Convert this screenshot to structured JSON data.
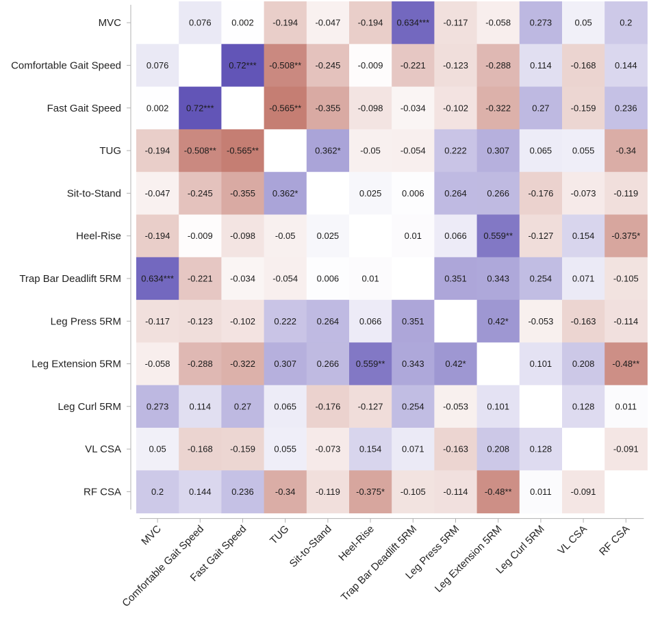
{
  "chart_data": {
    "type": "heatmap",
    "title": "",
    "xlabel": "",
    "ylabel": "",
    "value_range": [
      -0.75,
      0.75
    ],
    "colors": {
      "negative": "#b4584a",
      "positive": "#5c4fb4",
      "neutral": "#ffffff"
    },
    "categories": [
      "MVC",
      "Comfortable Gait Speed",
      "Fast Gait Speed",
      "TUG",
      "Sit-to-Stand",
      "Heel-Rise",
      "Trap Bar Deadlift 5RM",
      "Leg Press 5RM",
      "Leg Extension 5RM",
      "Leg Curl 5RM",
      "VL CSA",
      "RF CSA"
    ],
    "values": [
      [
        null,
        0.076,
        0.002,
        -0.194,
        -0.047,
        -0.194,
        0.634,
        -0.117,
        -0.058,
        0.273,
        0.05,
        0.2
      ],
      [
        0.076,
        null,
        0.72,
        -0.508,
        -0.245,
        -0.009,
        -0.221,
        -0.123,
        -0.288,
        0.114,
        -0.168,
        0.144
      ],
      [
        0.002,
        0.72,
        null,
        -0.565,
        -0.355,
        -0.098,
        -0.034,
        -0.102,
        -0.322,
        0.27,
        -0.159,
        0.236
      ],
      [
        -0.194,
        -0.508,
        -0.565,
        null,
        0.362,
        -0.05,
        -0.054,
        0.222,
        0.307,
        0.065,
        0.055,
        -0.34
      ],
      [
        -0.047,
        -0.245,
        -0.355,
        0.362,
        null,
        0.025,
        0.006,
        0.264,
        0.266,
        -0.176,
        -0.073,
        -0.119
      ],
      [
        -0.194,
        -0.009,
        -0.098,
        -0.05,
        0.025,
        null,
        0.01,
        0.066,
        0.559,
        -0.127,
        0.154,
        -0.375
      ],
      [
        0.634,
        -0.221,
        -0.034,
        -0.054,
        0.006,
        0.01,
        null,
        0.351,
        0.343,
        0.254,
        0.071,
        -0.105
      ],
      [
        -0.117,
        -0.123,
        -0.102,
        0.222,
        0.264,
        0.066,
        0.351,
        null,
        0.42,
        -0.053,
        -0.163,
        -0.114
      ],
      [
        -0.058,
        -0.288,
        -0.322,
        0.307,
        0.266,
        0.559,
        0.343,
        0.42,
        null,
        0.101,
        0.208,
        -0.48
      ],
      [
        0.273,
        0.114,
        0.27,
        0.065,
        -0.176,
        -0.127,
        0.254,
        -0.053,
        0.101,
        null,
        0.128,
        0.011
      ],
      [
        0.05,
        -0.168,
        -0.159,
        0.055,
        -0.073,
        0.154,
        0.071,
        -0.163,
        0.208,
        0.128,
        null,
        -0.091
      ],
      [
        0.2,
        0.144,
        0.236,
        -0.34,
        -0.119,
        -0.375,
        -0.105,
        -0.114,
        -0.48,
        0.011,
        -0.091,
        null
      ]
    ],
    "labels": [
      [
        "",
        "0.076",
        "0.002",
        "-0.194",
        "-0.047",
        "-0.194",
        "0.634***",
        "-0.117",
        "-0.058",
        "0.273",
        "0.05",
        "0.2"
      ],
      [
        "0.076",
        "",
        "0.72***",
        "-0.508**",
        "-0.245",
        "-0.009",
        "-0.221",
        "-0.123",
        "-0.288",
        "0.114",
        "-0.168",
        "0.144"
      ],
      [
        "0.002",
        "0.72***",
        "",
        "-0.565**",
        "-0.355",
        "-0.098",
        "-0.034",
        "-0.102",
        "-0.322",
        "0.27",
        "-0.159",
        "0.236"
      ],
      [
        "-0.194",
        "-0.508**",
        "-0.565**",
        "",
        "0.362*",
        "-0.05",
        "-0.054",
        "0.222",
        "0.307",
        "0.065",
        "0.055",
        "-0.34"
      ],
      [
        "-0.047",
        "-0.245",
        "-0.355",
        "0.362*",
        "",
        "0.025",
        "0.006",
        "0.264",
        "0.266",
        "-0.176",
        "-0.073",
        "-0.119"
      ],
      [
        "-0.194",
        "-0.009",
        "-0.098",
        "-0.05",
        "0.025",
        "",
        "0.01",
        "0.066",
        "0.559**",
        "-0.127",
        "0.154",
        "-0.375*"
      ],
      [
        "0.634***",
        "-0.221",
        "-0.034",
        "-0.054",
        "0.006",
        "0.01",
        "",
        "0.351",
        "0.343",
        "0.254",
        "0.071",
        "-0.105"
      ],
      [
        "-0.117",
        "-0.123",
        "-0.102",
        "0.222",
        "0.264",
        "0.066",
        "0.351",
        "",
        "0.42*",
        "-0.053",
        "-0.163",
        "-0.114"
      ],
      [
        "-0.058",
        "-0.288",
        "-0.322",
        "0.307",
        "0.266",
        "0.559**",
        "0.343",
        "0.42*",
        "",
        "0.101",
        "0.208",
        "-0.48**"
      ],
      [
        "0.273",
        "0.114",
        "0.27",
        "0.065",
        "-0.176",
        "-0.127",
        "0.254",
        "-0.053",
        "0.101",
        "",
        "0.128",
        "0.011"
      ],
      [
        "0.05",
        "-0.168",
        "-0.159",
        "0.055",
        "-0.073",
        "0.154",
        "0.071",
        "-0.163",
        "0.208",
        "0.128",
        "",
        "-0.091"
      ],
      [
        "0.2",
        "0.144",
        "0.236",
        "-0.34",
        "-0.119",
        "-0.375*",
        "-0.105",
        "-0.114",
        "-0.48**",
        "0.011",
        "-0.091",
        ""
      ]
    ]
  }
}
